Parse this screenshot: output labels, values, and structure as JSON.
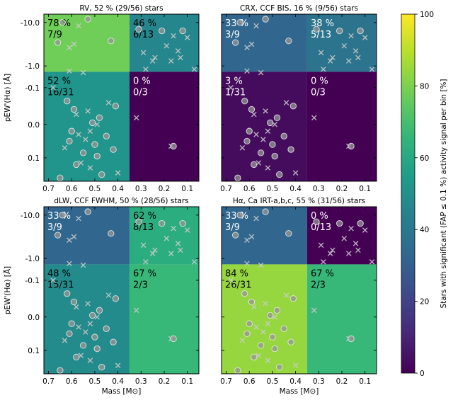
{
  "chart_data": [
    {
      "type": "heatmap",
      "title": "RV, 52 % (29/56) stars",
      "xlabel": "",
      "ylabel": "pEW'(Hα) [Å]",
      "cells": {
        "top_left": {
          "pct": "78 %",
          "frac": "7/9",
          "value": 78
        },
        "top_right": {
          "pct": "46 %",
          "frac": "6/13",
          "value": 46
        },
        "bottom_left": {
          "pct": "52 %",
          "frac": "16/31",
          "value": 52
        },
        "bottom_right": {
          "pct": "0 %",
          "frac": "0/3",
          "value": 0
        }
      }
    },
    {
      "type": "heatmap",
      "title": "CRX, CCF BIS, 16 % (9/56) stars",
      "xlabel": "",
      "ylabel": "",
      "cells": {
        "top_left": {
          "pct": "33 %",
          "frac": "3/9",
          "value": 33
        },
        "top_right": {
          "pct": "38 %",
          "frac": "5/13",
          "value": 38
        },
        "bottom_left": {
          "pct": "3 %",
          "frac": "1/31",
          "value": 3
        },
        "bottom_right": {
          "pct": "0 %",
          "frac": "0/3",
          "value": 0
        }
      }
    },
    {
      "type": "heatmap",
      "title": "dLW, CCF FWHM, 50 % (28/56) stars",
      "xlabel": "Mass [M⊙]",
      "ylabel": "pEW'(Hα) [Å]",
      "cells": {
        "top_left": {
          "pct": "33 %",
          "frac": "3/9",
          "value": 33
        },
        "top_right": {
          "pct": "62 %",
          "frac": "8/13",
          "value": 62
        },
        "bottom_left": {
          "pct": "48 %",
          "frac": "15/31",
          "value": 48
        },
        "bottom_right": {
          "pct": "67 %",
          "frac": "2/3",
          "value": 67
        }
      }
    },
    {
      "type": "heatmap",
      "title": "Hα, Ca IRT-a,b,c, 55 % (31/56) stars",
      "xlabel": "Mass [M⊙]",
      "ylabel": "",
      "cells": {
        "top_left": {
          "pct": "33 %",
          "frac": "3/9",
          "value": 33
        },
        "top_right": {
          "pct": "0 %",
          "frac": "0/13",
          "value": 0
        },
        "bottom_left": {
          "pct": "84 %",
          "frac": "26/31",
          "value": 84
        },
        "bottom_right": {
          "pct": "67 %",
          "frac": "2/3",
          "value": 67
        }
      }
    }
  ],
  "axes": {
    "x_ticks": [
      "0.7",
      "0.6",
      "0.5",
      "0.4",
      "0.3",
      "0.2",
      "0.1"
    ],
    "y_ticks": [
      "-10.0",
      "-1.0",
      "-0.1",
      "0.0",
      "0.1"
    ],
    "x_range": [
      0.72,
      0.05
    ],
    "mass_split": 0.35,
    "y_split_label": "-0.1 (symlog boundary)"
  },
  "colorbar": {
    "label": "Stars with significant (FAP ≤ 0.1 %) activity signal per bin [%]",
    "ticks": [
      "0",
      "20",
      "40",
      "60",
      "80",
      "100"
    ],
    "range": [
      0,
      100
    ]
  }
}
